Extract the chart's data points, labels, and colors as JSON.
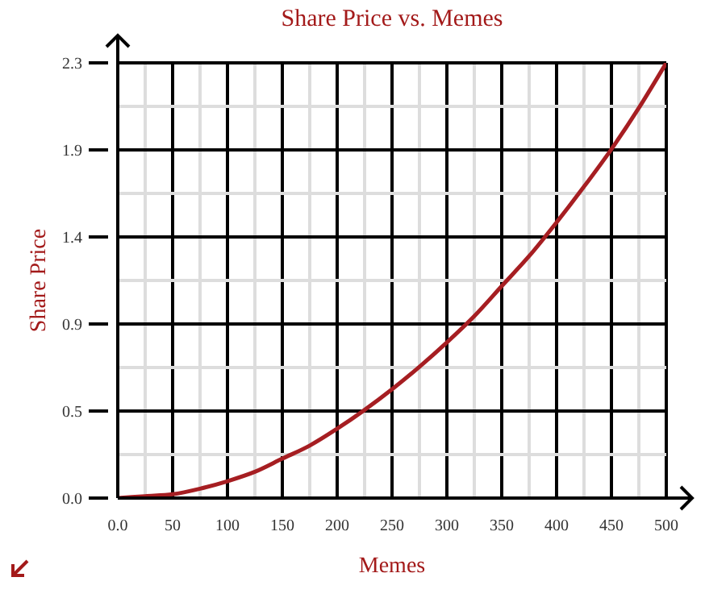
{
  "chart_data": {
    "type": "line",
    "title": "Share Price vs. Memes",
    "xlabel": "Memes",
    "ylabel": "Share Price",
    "x": [
      0,
      25,
      50,
      75,
      100,
      125,
      150,
      175,
      200,
      225,
      250,
      275,
      300,
      325,
      350,
      375,
      400,
      425,
      450,
      475,
      500
    ],
    "series": [
      {
        "color": "#a61e22",
        "values": [
          0,
          0.01,
          0.02,
          0.05,
          0.09,
          0.14,
          0.21,
          0.28,
          0.37,
          0.47,
          0.58,
          0.7,
          0.83,
          0.97,
          1.13,
          1.29,
          1.47,
          1.66,
          1.86,
          2.08,
          2.32
        ]
      }
    ],
    "xlim": [
      0,
      500
    ],
    "xticks": [
      {
        "value": 0,
        "label": "0.0"
      },
      {
        "value": 25,
        "label": null
      },
      50,
      {
        "value": 75,
        "label": null
      },
      100,
      {
        "value": 125,
        "label": null
      },
      150,
      {
        "value": 175,
        "label": null
      },
      200,
      {
        "value": 225,
        "label": null
      },
      250,
      {
        "value": 275,
        "label": null
      },
      300,
      {
        "value": 325,
        "label": null
      },
      350,
      {
        "value": 375,
        "label": null
      },
      400,
      {
        "value": 425,
        "label": null
      },
      450,
      {
        "value": 475,
        "label": null
      },
      500
    ],
    "ylim": [
      0,
      2.32
    ],
    "yticks": [
      {
        "value": 0,
        "label": "0.0"
      },
      {
        "value": 0.232,
        "label": null
      },
      {
        "value": 0.464,
        "label": "0.5"
      },
      {
        "value": 0.696,
        "label": null
      },
      {
        "value": 0.928,
        "label": "0.9"
      },
      {
        "value": 1.16,
        "label": null
      },
      {
        "value": 1.392,
        "label": "1.4"
      },
      {
        "value": 1.624,
        "label": null
      },
      {
        "value": 1.856,
        "label": "1.9"
      },
      {
        "value": 2.088,
        "label": null
      },
      {
        "value": 2.32,
        "label": "2.3"
      }
    ],
    "grid": true,
    "line_style": "solid"
  }
}
